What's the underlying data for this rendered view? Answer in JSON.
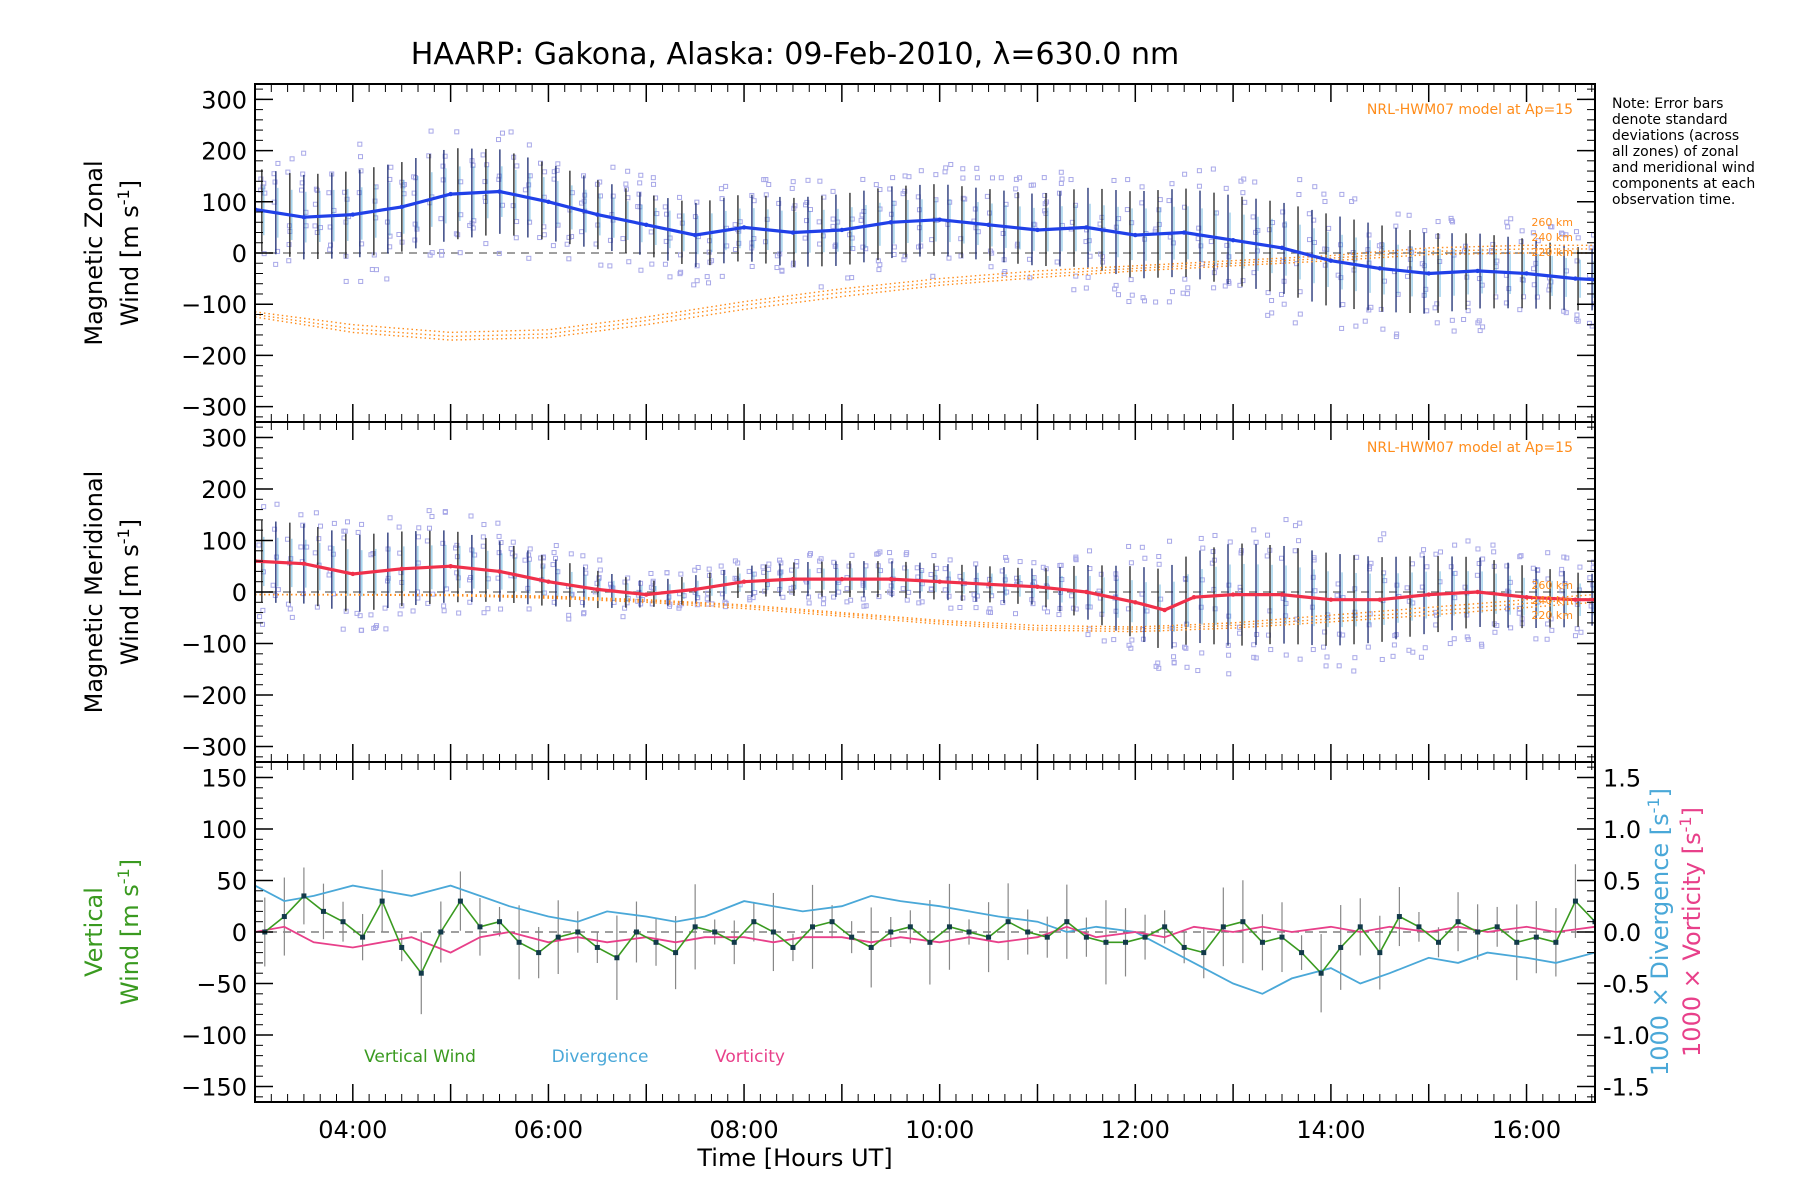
{
  "title": "HAARP: Gakona,  Alaska: 09-Feb-2010, λ=630.0 nm",
  "note": "Note: Error bars denote standard deviations (across all zones) of zonal and meridional wind components at each observation time.",
  "colors": {
    "zonal_line": "#2040e8",
    "meridional_line": "#f0304a",
    "vertical_wind": "#3a9a20",
    "divergence": "#4aa8d8",
    "vorticity": "#e8408a",
    "model": "#ff8c1a",
    "scatter": "#a8a8e8",
    "errorbar": "#222222"
  },
  "chart_data": [
    {
      "type": "line",
      "panel": "zonal",
      "ylabel": "Magnetic Zonal",
      "ylabel_unit_prefix": "Wind [m s",
      "ylabel_unit_exp": "-1",
      "ylabel_unit_suffix": "]",
      "xlim": [
        3.0,
        16.7
      ],
      "ylim": [
        -330,
        330
      ],
      "yticks": [
        300,
        200,
        100,
        0,
        -100,
        -200,
        -300
      ],
      "model_label": "NRL-HWM07 model at Ap=15",
      "altitude_labels": [
        "260 km",
        "240 km",
        "220 km"
      ],
      "series": [
        {
          "name": "",
          "x": [
            3.0,
            3.5,
            4.0,
            4.5,
            5.0,
            5.5,
            6.0,
            6.5,
            7.0,
            7.5,
            8.0,
            8.5,
            9.0,
            9.5,
            10.0,
            10.5,
            11.0,
            11.5,
            12.0,
            12.5,
            13.0,
            13.5,
            14.0,
            14.5,
            15.0,
            15.5,
            16.0,
            16.5,
            16.7
          ],
          "y": [
            85,
            70,
            75,
            90,
            115,
            120,
            100,
            75,
            55,
            35,
            50,
            40,
            45,
            60,
            65,
            55,
            45,
            50,
            35,
            40,
            25,
            10,
            -15,
            -30,
            -40,
            -35,
            -40,
            -50,
            -52
          ]
        }
      ],
      "model": [
        {
          "name": "260 km",
          "x": [
            3.0,
            4.0,
            5.0,
            6.0,
            7.0,
            8.0,
            9.0,
            10.0,
            11.0,
            12.0,
            13.0,
            14.0,
            15.0,
            16.0,
            16.7
          ],
          "y": [
            -115,
            -140,
            -155,
            -150,
            -125,
            -95,
            -70,
            -50,
            -35,
            -25,
            -15,
            -5,
            10,
            15,
            15
          ]
        },
        {
          "name": "240 km",
          "x": [
            3.0,
            4.0,
            5.0,
            6.0,
            7.0,
            8.0,
            9.0,
            10.0,
            11.0,
            12.0,
            13.0,
            14.0,
            15.0,
            16.0,
            16.7
          ],
          "y": [
            -120,
            -148,
            -163,
            -158,
            -132,
            -102,
            -77,
            -57,
            -42,
            -30,
            -20,
            -10,
            3,
            8,
            8
          ]
        },
        {
          "name": "220 km",
          "x": [
            3.0,
            4.0,
            5.0,
            6.0,
            7.0,
            8.0,
            9.0,
            10.0,
            11.0,
            12.0,
            13.0,
            14.0,
            15.0,
            16.0,
            16.7
          ],
          "y": [
            -125,
            -155,
            -170,
            -165,
            -140,
            -110,
            -85,
            -63,
            -48,
            -35,
            -25,
            -15,
            -3,
            0,
            0
          ]
        }
      ]
    },
    {
      "type": "line",
      "panel": "meridional",
      "ylabel": "Magnetic Meridional",
      "ylabel_unit_prefix": "Wind [m s",
      "ylabel_unit_exp": "-1",
      "ylabel_unit_suffix": "]",
      "xlim": [
        3.0,
        16.7
      ],
      "ylim": [
        -330,
        330
      ],
      "yticks": [
        300,
        200,
        100,
        0,
        -100,
        -200,
        -300
      ],
      "model_label": "NRL-HWM07 model at Ap=15",
      "altitude_labels": [
        "260 km",
        "240 km",
        "220 km"
      ],
      "series": [
        {
          "name": "",
          "x": [
            3.0,
            3.5,
            4.0,
            4.5,
            5.0,
            5.5,
            6.0,
            6.5,
            7.0,
            7.5,
            8.0,
            8.5,
            9.0,
            9.5,
            10.0,
            10.5,
            11.0,
            11.5,
            12.0,
            12.3,
            12.6,
            13.0,
            13.5,
            14.0,
            14.5,
            15.0,
            15.5,
            16.0,
            16.5,
            16.7
          ],
          "y": [
            60,
            55,
            35,
            45,
            50,
            40,
            20,
            5,
            -5,
            5,
            20,
            25,
            25,
            25,
            20,
            15,
            10,
            0,
            -20,
            -35,
            -10,
            -5,
            -5,
            -15,
            -15,
            -5,
            0,
            -10,
            -15,
            -15
          ]
        }
      ],
      "model": [
        {
          "name": "260 km",
          "x": [
            3.0,
            4.0,
            5.0,
            6.0,
            7.0,
            8.0,
            9.0,
            10.0,
            11.0,
            12.0,
            13.0,
            14.0,
            15.0,
            16.0,
            16.7
          ],
          "y": [
            -5,
            -5,
            -5,
            -8,
            -15,
            -25,
            -40,
            -55,
            -65,
            -68,
            -60,
            -45,
            -30,
            -15,
            -5
          ]
        },
        {
          "name": "240 km",
          "x": [
            3.0,
            4.0,
            5.0,
            6.0,
            7.0,
            8.0,
            9.0,
            10.0,
            11.0,
            12.0,
            13.0,
            14.0,
            15.0,
            16.0,
            16.7
          ],
          "y": [
            -5,
            -5,
            -6,
            -10,
            -17,
            -28,
            -43,
            -58,
            -70,
            -72,
            -65,
            -52,
            -38,
            -22,
            -12
          ]
        },
        {
          "name": "220 km",
          "x": [
            3.0,
            4.0,
            5.0,
            6.0,
            7.0,
            8.0,
            9.0,
            10.0,
            11.0,
            12.0,
            13.0,
            14.0,
            15.0,
            16.0,
            16.7
          ],
          "y": [
            -5,
            -6,
            -7,
            -12,
            -20,
            -32,
            -47,
            -62,
            -74,
            -77,
            -70,
            -58,
            -45,
            -30,
            -20
          ]
        }
      ]
    },
    {
      "type": "line",
      "panel": "vertical",
      "ylabel": "Vertical",
      "ylabel_unit_prefix": "Wind [m s",
      "ylabel_unit_exp": "-1",
      "ylabel_unit_suffix": "]",
      "xlabel": "Time [Hours UT]",
      "xlim": [
        3.0,
        16.7
      ],
      "ylim": [
        -165,
        165
      ],
      "yticks": [
        150,
        100,
        50,
        0,
        -50,
        -100,
        -150
      ],
      "xticks": [
        "04:00",
        "06:00",
        "08:00",
        "10:00",
        "12:00",
        "14:00",
        "16:00"
      ],
      "xtick_values": [
        4,
        6,
        8,
        10,
        12,
        14,
        16
      ],
      "y2label_div": "1000 × Divergence [s",
      "y2label_vort": "1000 × Vorticity [s",
      "y2label_exp": "-1",
      "y2label_suffix": "]",
      "y2lim": [
        -1.65,
        1.65
      ],
      "y2ticks": [
        "1.5",
        "1.0",
        "0.5",
        "0.0",
        "-0.5",
        "-1.0",
        "-1.5"
      ],
      "y2tick_values": [
        1.5,
        1.0,
        0.5,
        0.0,
        -0.5,
        -1.0,
        -1.5
      ],
      "legend": [
        "Vertical Wind",
        "Divergence",
        "Vorticity"
      ],
      "series": [
        {
          "name": "Vertical Wind",
          "x": [
            3.1,
            3.3,
            3.5,
            3.7,
            3.9,
            4.1,
            4.3,
            4.5,
            4.7,
            4.9,
            5.1,
            5.3,
            5.5,
            5.7,
            5.9,
            6.1,
            6.3,
            6.5,
            6.7,
            6.9,
            7.1,
            7.3,
            7.5,
            7.7,
            7.9,
            8.1,
            8.3,
            8.5,
            8.7,
            8.9,
            9.1,
            9.3,
            9.5,
            9.7,
            9.9,
            10.1,
            10.3,
            10.5,
            10.7,
            10.9,
            11.1,
            11.3,
            11.5,
            11.7,
            11.9,
            12.1,
            12.3,
            12.5,
            12.7,
            12.9,
            13.1,
            13.3,
            13.5,
            13.7,
            13.9,
            14.1,
            14.3,
            14.5,
            14.7,
            14.9,
            15.1,
            15.3,
            15.5,
            15.7,
            15.9,
            16.1,
            16.3,
            16.5,
            16.7
          ],
          "y": [
            0,
            15,
            35,
            20,
            10,
            -5,
            30,
            -15,
            -40,
            0,
            30,
            5,
            10,
            -10,
            -20,
            -5,
            0,
            -15,
            -25,
            0,
            -10,
            -20,
            5,
            0,
            -10,
            10,
            0,
            -15,
            5,
            10,
            -5,
            -15,
            0,
            5,
            -10,
            5,
            0,
            -5,
            10,
            0,
            -5,
            10,
            -5,
            -10,
            -10,
            -5,
            5,
            -15,
            -20,
            5,
            10,
            -10,
            -5,
            -20,
            -40,
            -15,
            5,
            -20,
            15,
            5,
            -10,
            10,
            0,
            5,
            -10,
            -5,
            -10,
            30,
            10
          ]
        },
        {
          "name": "Divergence",
          "x": [
            3.0,
            3.3,
            3.6,
            4.0,
            4.3,
            4.6,
            5.0,
            5.3,
            5.6,
            6.0,
            6.3,
            6.6,
            7.0,
            7.3,
            7.6,
            8.0,
            8.3,
            8.6,
            9.0,
            9.3,
            9.6,
            10.0,
            10.3,
            10.6,
            11.0,
            11.3,
            11.6,
            12.0,
            12.3,
            12.6,
            13.0,
            13.3,
            13.6,
            14.0,
            14.3,
            14.6,
            15.0,
            15.3,
            15.6,
            16.0,
            16.3,
            16.7
          ],
          "y": [
            0.45,
            0.3,
            0.35,
            0.45,
            0.4,
            0.35,
            0.45,
            0.35,
            0.25,
            0.15,
            0.1,
            0.2,
            0.15,
            0.1,
            0.15,
            0.3,
            0.25,
            0.2,
            0.25,
            0.35,
            0.3,
            0.25,
            0.2,
            0.15,
            0.1,
            0.0,
            0.05,
            0.0,
            -0.15,
            -0.3,
            -0.5,
            -0.6,
            -0.45,
            -0.35,
            -0.5,
            -0.4,
            -0.25,
            -0.3,
            -0.2,
            -0.25,
            -0.3,
            -0.2
          ]
        },
        {
          "name": "Vorticity",
          "x": [
            3.0,
            3.3,
            3.6,
            4.0,
            4.3,
            4.6,
            5.0,
            5.3,
            5.6,
            6.0,
            6.3,
            6.6,
            7.0,
            7.3,
            7.6,
            8.0,
            8.3,
            8.6,
            9.0,
            9.3,
            9.6,
            10.0,
            10.3,
            10.6,
            11.0,
            11.3,
            11.6,
            12.0,
            12.3,
            12.6,
            13.0,
            13.3,
            13.6,
            14.0,
            14.3,
            14.6,
            15.0,
            15.3,
            15.6,
            16.0,
            16.3,
            16.7
          ],
          "y": [
            0.0,
            0.05,
            -0.1,
            -0.15,
            -0.1,
            -0.05,
            -0.2,
            -0.05,
            0.0,
            -0.1,
            -0.05,
            -0.1,
            -0.05,
            -0.1,
            -0.05,
            -0.05,
            -0.1,
            -0.05,
            -0.05,
            -0.1,
            -0.05,
            -0.1,
            -0.05,
            -0.1,
            -0.05,
            0.05,
            -0.05,
            0.0,
            -0.05,
            0.05,
            0.0,
            0.05,
            0.0,
            0.05,
            0.0,
            0.05,
            0.0,
            0.05,
            0.0,
            0.05,
            0.0,
            0.05
          ]
        }
      ]
    }
  ]
}
